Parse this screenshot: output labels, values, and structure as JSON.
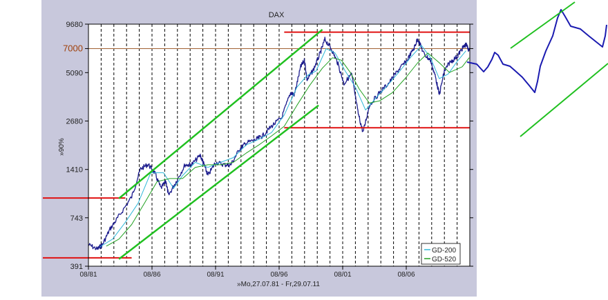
{
  "chart_data": {
    "type": "line",
    "title": "DAX",
    "ylabel": "»90%",
    "xlabel": "»Mo,27.07.81 - Fr,29.07.11",
    "x_range": [
      "1981-07-27",
      "2011-07-29"
    ],
    "y_scale": "log",
    "ylim": [
      391,
      9680
    ],
    "yticks": [
      {
        "value": 391,
        "label": "391"
      },
      {
        "value": 743,
        "label": "743"
      },
      {
        "value": 1410,
        "label": "1410"
      },
      {
        "value": 2680,
        "label": "2680"
      },
      {
        "value": 5090,
        "label": "5090"
      },
      {
        "value": 7000,
        "label": "7000",
        "highlight": true
      },
      {
        "value": 9680,
        "label": "9680"
      }
    ],
    "xticks": [
      {
        "year": 1981.6,
        "label": "08/81"
      },
      {
        "year": 1986.6,
        "label": "08/86"
      },
      {
        "year": 1991.6,
        "label": "08/91"
      },
      {
        "year": 1996.6,
        "label": "08/96"
      },
      {
        "year": 2001.6,
        "label": "08/01"
      },
      {
        "year": 2006.6,
        "label": "08/06"
      }
    ],
    "grid": "dashed vertical lines",
    "legend_position": "bottom-right",
    "series": [
      {
        "name": "DAX",
        "color": "#1a1a8c",
        "x": [
          1981.6,
          1982.3,
          1982.7,
          1983.3,
          1984.0,
          1985.0,
          1985.7,
          1986.3,
          1986.8,
          1987.3,
          1987.7,
          1987.9,
          1988.5,
          1989.2,
          1989.7,
          1990.4,
          1990.7,
          1991.0,
          1991.6,
          1992.3,
          1992.8,
          1993.5,
          1994.0,
          1994.8,
          1995.3,
          1996.0,
          1996.8,
          1997.5,
          1997.8,
          1998.3,
          1998.6,
          1998.8,
          1999.3,
          1999.8,
          2000.2,
          2000.7,
          2001.2,
          2001.7,
          2002.3,
          2002.8,
          2003.2,
          2003.7,
          2004.5,
          2005.3,
          2006.0,
          2006.6,
          2007.2,
          2007.5,
          2008.0,
          2008.5,
          2008.9,
          2009.2,
          2009.6,
          2010.0,
          2010.6,
          2011.0,
          2011.3,
          2011.55
        ],
        "y": [
          520,
          490,
          520,
          640,
          760,
          980,
          1420,
          1510,
          1350,
          1100,
          1200,
          1000,
          1200,
          1500,
          1500,
          1700,
          1500,
          1300,
          1550,
          1500,
          1500,
          1850,
          2000,
          2100,
          2200,
          2500,
          2800,
          3900,
          3800,
          5500,
          6000,
          4600,
          5300,
          6500,
          7900,
          7000,
          5800,
          4400,
          5000,
          3000,
          2300,
          3300,
          3900,
          4500,
          5300,
          5900,
          7000,
          8000,
          6500,
          6000,
          4800,
          3800,
          5200,
          5800,
          6300,
          7000,
          7400,
          6800
        ]
      },
      {
        "name": "GD-200",
        "color": "#30b8d8",
        "x": [
          1982.5,
          1983.5,
          1984.5,
          1985.5,
          1986.5,
          1987.5,
          1988.3,
          1989.0,
          1990.0,
          1991.0,
          1992.0,
          1993.0,
          1994.0,
          1995.0,
          1996.0,
          1997.0,
          1998.0,
          1998.8,
          1999.5,
          2000.3,
          2001.0,
          2001.8,
          2002.6,
          2003.4,
          2004.3,
          2005.0,
          2006.0,
          2007.0,
          2007.8,
          2008.5,
          2009.2,
          2009.9,
          2010.6,
          2011.3
        ],
        "y": [
          505,
          560,
          700,
          900,
          1350,
          1350,
          1100,
          1300,
          1550,
          1450,
          1550,
          1650,
          1950,
          2100,
          2300,
          2900,
          4200,
          4900,
          5200,
          7000,
          6600,
          5200,
          4200,
          3100,
          3700,
          4200,
          5100,
          6300,
          7300,
          6200,
          4700,
          5000,
          5900,
          6800
        ]
      },
      {
        "name": "GD-520",
        "color": "#20a020",
        "x": [
          1983.0,
          1984.0,
          1985.0,
          1986.0,
          1987.0,
          1988.0,
          1989.0,
          1990.0,
          1991.0,
          1992.0,
          1993.0,
          1994.0,
          1995.0,
          1996.0,
          1997.0,
          1998.0,
          1999.0,
          2000.0,
          2000.8,
          2001.5,
          2002.2,
          2002.9,
          2003.7,
          2004.5,
          2005.5,
          2006.5,
          2007.5,
          2008.3,
          2009.2,
          2010.0,
          2011.0,
          2011.55
        ],
        "y": [
          510,
          560,
          680,
          900,
          1200,
          1250,
          1250,
          1450,
          1500,
          1500,
          1550,
          1750,
          1950,
          2200,
          2500,
          3300,
          4300,
          5400,
          6200,
          6000,
          5100,
          4100,
          3400,
          3500,
          3900,
          4700,
          5800,
          6600,
          5800,
          5100,
          5500,
          6200
        ]
      }
    ],
    "annotations": {
      "resistance_lines": [
        {
          "y": 8700,
          "x1": 1997.0,
          "x2": 2011.6,
          "color": "#e01010"
        },
        {
          "y": 2450,
          "x1": 1997.0,
          "x2": 2011.6,
          "color": "#e01010"
        },
        {
          "y": 965,
          "x1": 1981.6,
          "x2": 1984.5,
          "outside": true,
          "color": "#e01010"
        },
        {
          "y": 437,
          "x1": 1981.6,
          "x2": 1985.0,
          "outside": true,
          "color": "#e01010"
        }
      ],
      "channel_lines": [
        {
          "from": [
            1984.0,
            960
          ],
          "to": [
            2000.0,
            9000
          ],
          "color": "#20c020"
        },
        {
          "from": [
            1984.0,
            430
          ],
          "to": [
            1999.7,
            3300
          ],
          "color": "#20c020"
        }
      ],
      "level_line": {
        "y": 7000,
        "color": "#a06030"
      }
    }
  }
}
